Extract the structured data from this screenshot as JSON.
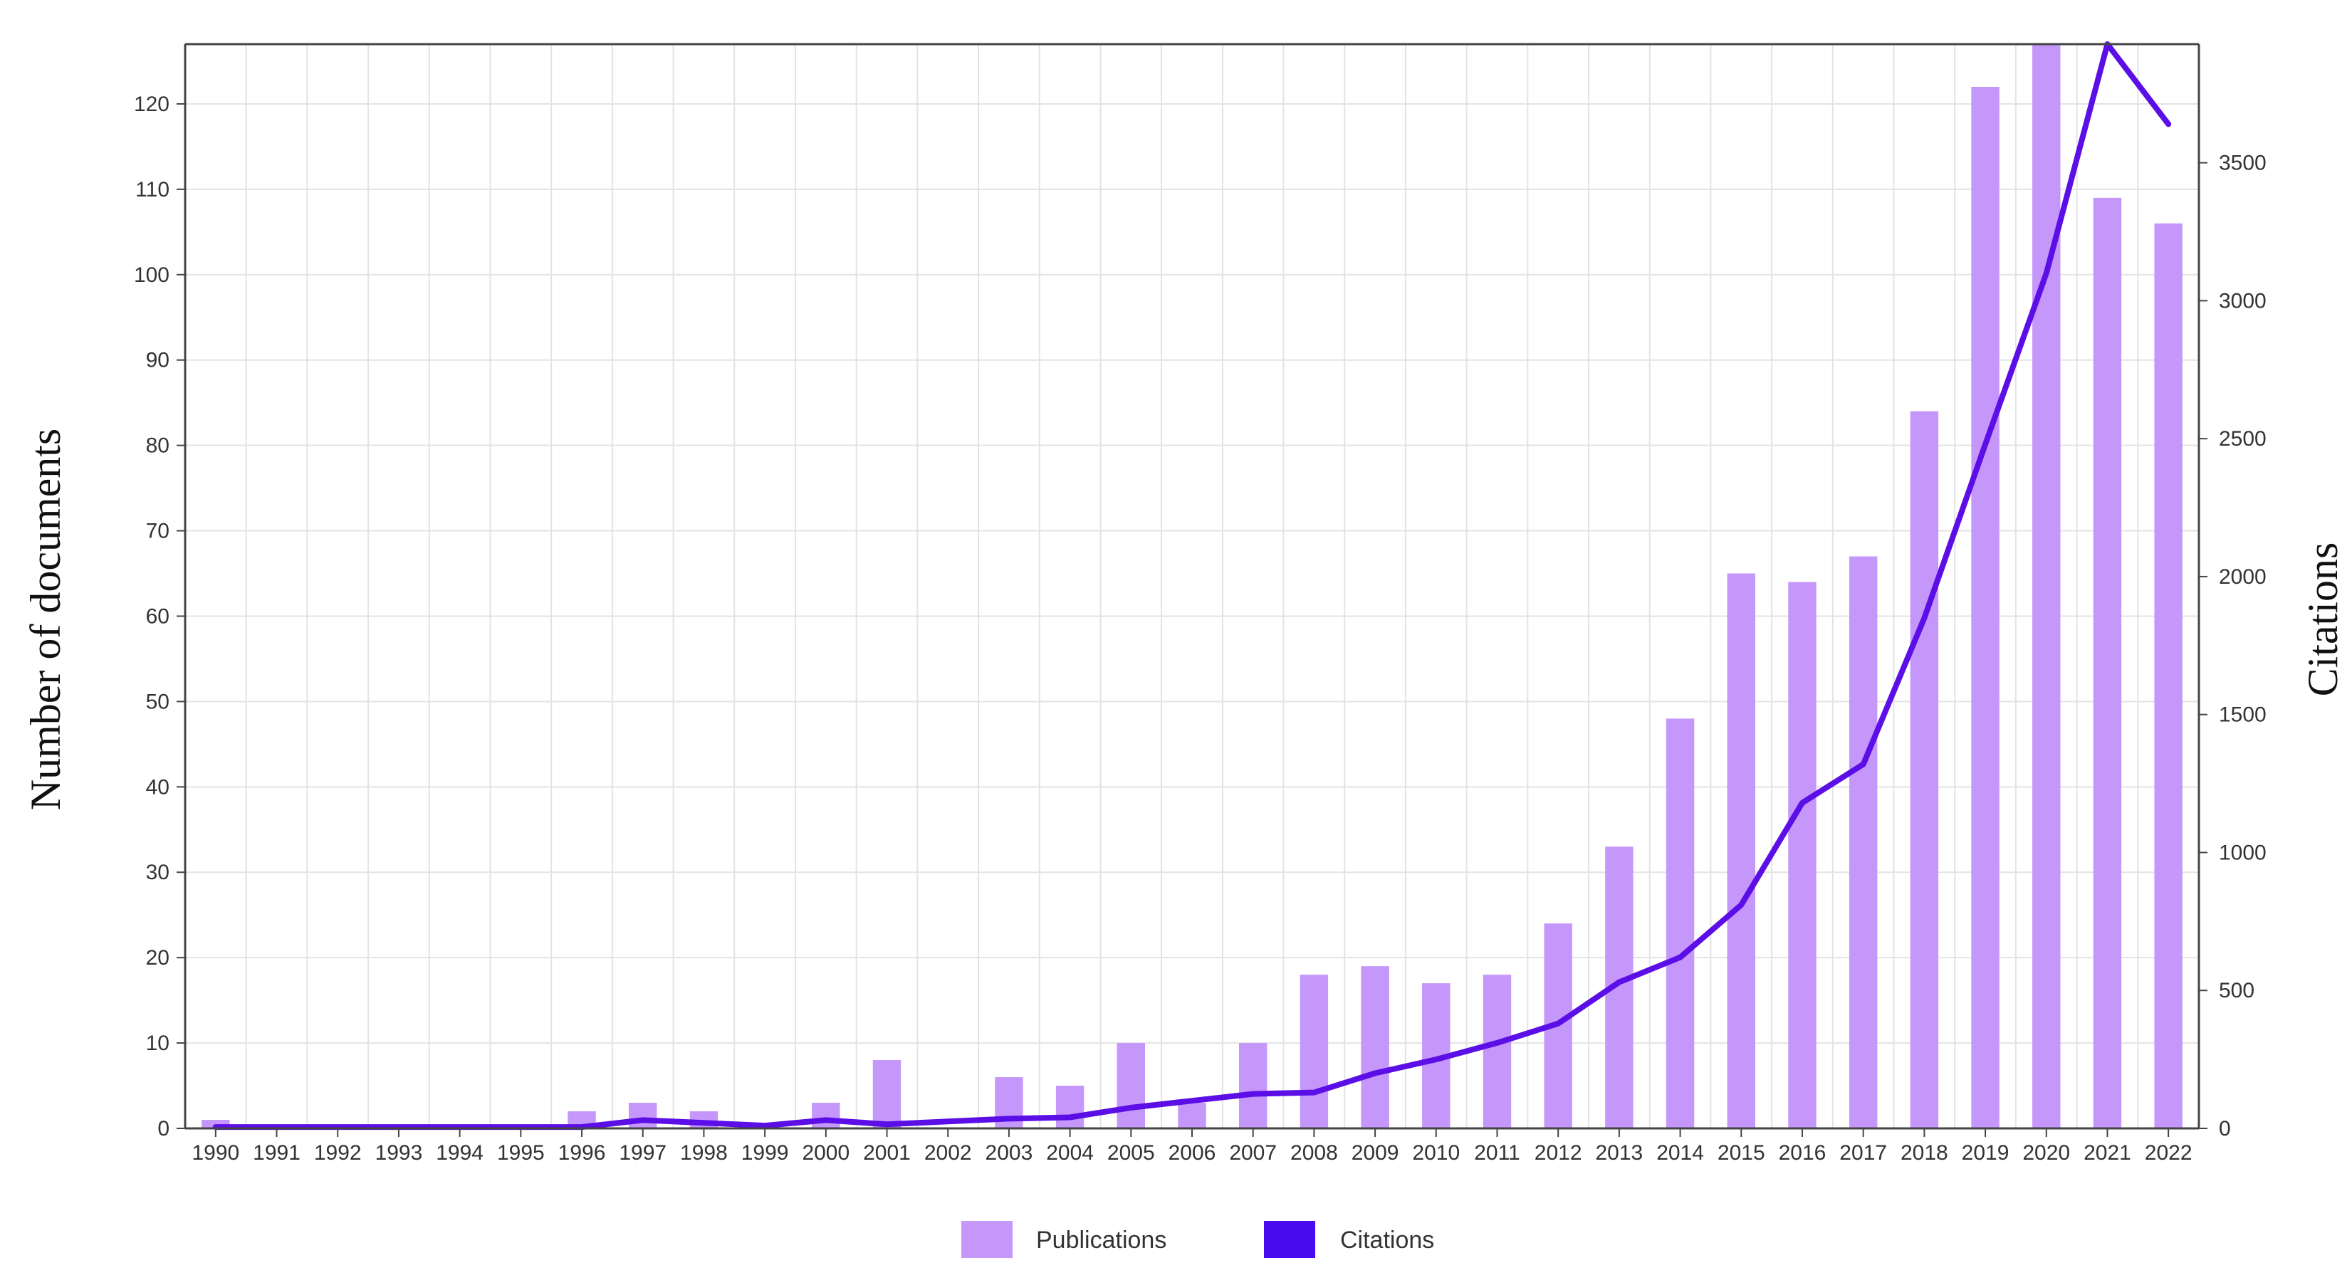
{
  "chart_data": {
    "type": "bar+line",
    "title": "",
    "categories": [
      "1990",
      "1991",
      "1992",
      "1993",
      "1994",
      "1995",
      "1996",
      "1997",
      "1998",
      "1999",
      "2000",
      "2001",
      "2002",
      "2003",
      "2004",
      "2005",
      "2006",
      "2007",
      "2008",
      "2009",
      "2010",
      "2011",
      "2012",
      "2013",
      "2014",
      "2015",
      "2016",
      "2017",
      "2018",
      "2019",
      "2020",
      "2021",
      "2022"
    ],
    "series": [
      {
        "name": "Publications",
        "type": "bar",
        "axis": "left",
        "color": "#c597fb",
        "values": [
          1,
          0,
          0,
          0,
          0,
          0,
          2,
          3,
          2,
          0,
          3,
          8,
          0,
          6,
          5,
          10,
          3,
          10,
          18,
          19,
          17,
          18,
          24,
          33,
          48,
          65,
          64,
          67,
          84,
          122,
          127,
          109,
          106
        ]
      },
      {
        "name": "Citations",
        "type": "line",
        "axis": "right",
        "color": "#5b0ee6",
        "values": [
          5,
          5,
          5,
          5,
          5,
          5,
          5,
          30,
          20,
          10,
          30,
          15,
          25,
          35,
          40,
          75,
          100,
          125,
          130,
          200,
          250,
          310,
          380,
          530,
          620,
          810,
          1180,
          1320,
          1850,
          2480,
          3100,
          3930,
          3640
        ]
      }
    ],
    "ylabel": "Number of documents",
    "ylabel_right": "Citations",
    "ylim": [
      0,
      127
    ],
    "ylim_right": [
      0,
      3930
    ],
    "yticks": [
      0,
      10,
      20,
      30,
      40,
      50,
      60,
      70,
      80,
      90,
      100,
      110,
      120
    ],
    "yticks_right": [
      0,
      500,
      1000,
      1500,
      2000,
      2500,
      3000,
      3500
    ],
    "grid": true,
    "legend": "bottom-center",
    "legend_swatch_colors": [
      "#c597fb",
      "#4a0aee"
    ]
  }
}
